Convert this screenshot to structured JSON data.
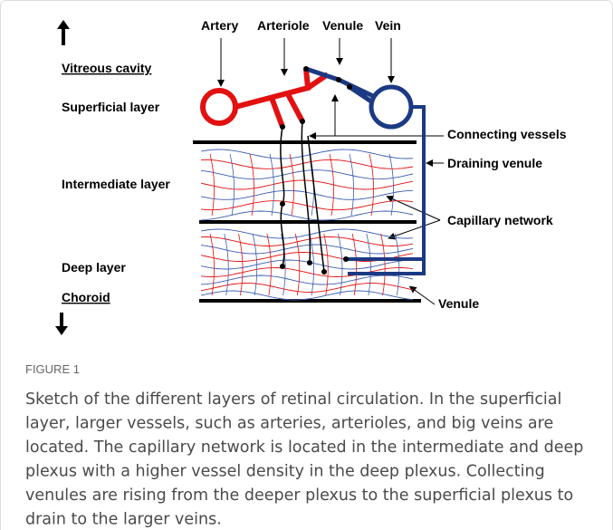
{
  "layers": [
    "Vitreous cavity",
    "Superficial layer",
    "Intermediate layer",
    "Deep layer",
    "Choroid"
  ],
  "vessels": [
    "Artery",
    "Arteriole",
    "Venule",
    "Vein"
  ],
  "annotations": [
    "Connecting vessels",
    "Draining venule",
    "Capillary network",
    "Venule"
  ],
  "caption": {
    "label": "FIGURE 1",
    "lines": [
      "Sketch of the different layers of retinal circulation. In the superficial",
      "layer, larger vessels, such as arteries, arterioles, and big veins are",
      "located. The capillary network is located in the intermediate and deep",
      "plexus with a higher vessel density in the deep plexus. Collecting",
      "venules are rising from the deeper plexus to the superficial plexus to",
      "drain to the larger veins."
    ]
  }
}
